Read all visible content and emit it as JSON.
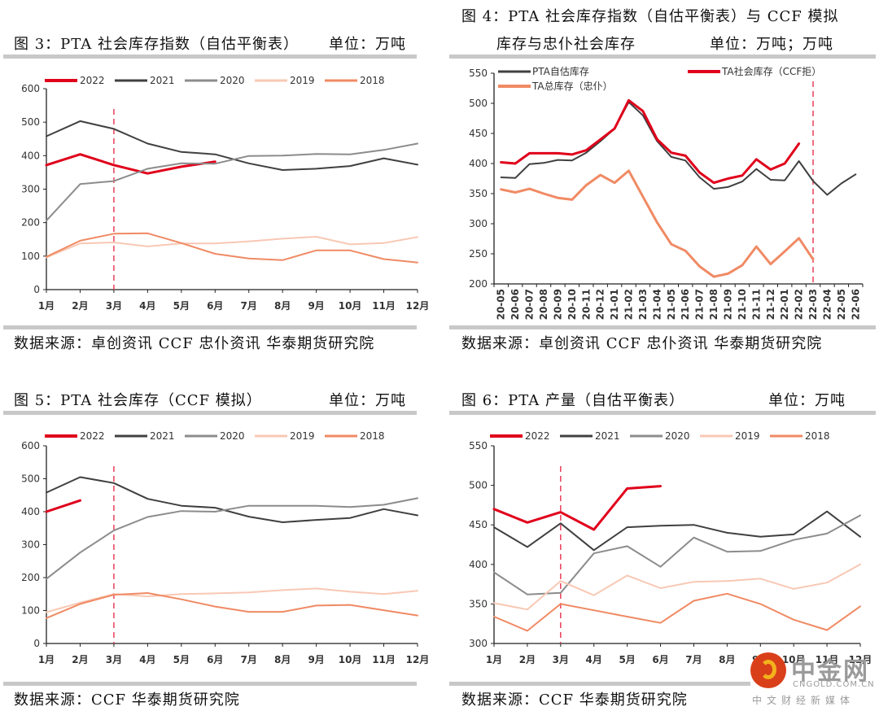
{
  "colors": {
    "y2022": "#e0001b",
    "y2021": "#404040",
    "y2020": "#8c8c8c",
    "y2019": "#f8c8b4",
    "y2018": "#f08a64",
    "marker": "#e8405a"
  },
  "figures": {
    "fig3": {
      "title": "图 3：PTA 社会库存指数（自估平衡表）",
      "unit": "单位：万吨",
      "source": "数据来源：卓创资讯 CCF 忠仆资讯 华泰期货研究院"
    },
    "fig4": {
      "title_line1": "图 4：PTA 社会库存指数（自估平衡表）与 CCF 模拟",
      "title_line2": "库存与忠仆社会库存",
      "unit": "单位：万吨；万吨",
      "source": "数据来源：卓创资讯 CCF 忠仆资讯 华泰期货研究院"
    },
    "fig5": {
      "title": "图 5：PTA 社会库存（CCF 模拟）",
      "unit": "单位：万吨",
      "source": "数据来源：CCF 华泰期货研究院"
    },
    "fig6": {
      "title": "图 6：PTA 产量（自估平衡表）",
      "unit": "单位：万吨",
      "source": "数据来源：CCF 华泰期货研究院"
    }
  },
  "watermark": {
    "name": "中金网",
    "domain": "CNGOLD.COM.CN",
    "tagline": "中文财经新媒体"
  },
  "chart_data": [
    {
      "id": "fig3",
      "type": "line",
      "title": "图 3：PTA 社会库存指数（自估平衡表）",
      "xlabel": "",
      "ylabel": "",
      "categories": [
        "1月",
        "2月",
        "3月",
        "4月",
        "5月",
        "6月",
        "7月",
        "8月",
        "9月",
        "10月",
        "11月",
        "12月"
      ],
      "yticks": [
        0,
        100,
        200,
        300,
        400,
        500,
        600
      ],
      "ylim": [
        0,
        600
      ],
      "marker_x": "3月",
      "legend": "top",
      "series": [
        {
          "name": "2022",
          "color_key": "y2022",
          "width": 3,
          "values": [
            372,
            404,
            372,
            347,
            367,
            382,
            null,
            null,
            null,
            null,
            null,
            null
          ]
        },
        {
          "name": "2021",
          "color_key": "y2021",
          "width": 2,
          "values": [
            458,
            503,
            480,
            436,
            411,
            404,
            377,
            357,
            361,
            369,
            392,
            373
          ]
        },
        {
          "name": "2020",
          "color_key": "y2020",
          "width": 2,
          "values": [
            206,
            315,
            324,
            361,
            377,
            376,
            399,
            400,
            405,
            404,
            417,
            436
          ]
        },
        {
          "name": "2019",
          "color_key": "y2019",
          "width": 2,
          "values": [
            96,
            138,
            141,
            129,
            138,
            138,
            144,
            152,
            158,
            135,
            139,
            157
          ]
        },
        {
          "name": "2018",
          "color_key": "y2018",
          "width": 2,
          "values": [
            98,
            146,
            167,
            168,
            139,
            107,
            93,
            88,
            117,
            117,
            91,
            81
          ]
        }
      ]
    },
    {
      "id": "fig4",
      "type": "line",
      "title": "图 4：PTA 社会库存指数（自估平衡表）与 CCF 模拟库存与忠仆社会库存",
      "categories": [
        "20-05",
        "20-06",
        "20-07",
        "20-08",
        "20-09",
        "20-10",
        "20-11",
        "20-12",
        "21-01",
        "21-02",
        "21-03",
        "21-04",
        "21-05",
        "21-06",
        "21-07",
        "21-08",
        "21-09",
        "21-10",
        "21-11",
        "21-12",
        "22-01",
        "22-02",
        "22-03",
        "22-04",
        "22-05",
        "22-06"
      ],
      "yticks": [
        200,
        250,
        300,
        350,
        400,
        450,
        500,
        550
      ],
      "ylim": [
        200,
        550
      ],
      "marker_x": "22-03",
      "series": [
        {
          "name": "PTA自估库存",
          "color_key": "y2021",
          "width": 2,
          "values": [
            377,
            376,
            399,
            401,
            406,
            405,
            418,
            437,
            458,
            502,
            480,
            437,
            411,
            405,
            377,
            358,
            361,
            370,
            391,
            373,
            372,
            404,
            371,
            348,
            367,
            382
          ]
        },
        {
          "name": "TA社会库存（CCF拒）",
          "color_key": "y2022",
          "width": 3,
          "values": [
            402,
            400,
            417,
            417,
            417,
            415,
            422,
            440,
            458,
            505,
            487,
            440,
            418,
            413,
            385,
            368,
            375,
            380,
            407,
            390,
            400,
            433,
            null,
            null,
            null,
            null
          ]
        },
        {
          "name": "TA总库存（忠仆）",
          "color_key": "y2018",
          "width": 3,
          "values": [
            357,
            352,
            358,
            350,
            343,
            340,
            364,
            381,
            368,
            388,
            345,
            302,
            266,
            255,
            229,
            212,
            217,
            231,
            262,
            233,
            254,
            276,
            241,
            null,
            null,
            null
          ]
        }
      ]
    },
    {
      "id": "fig5",
      "type": "line",
      "title": "图 5：PTA 社会库存（CCF 模拟）",
      "categories": [
        "1月",
        "2月",
        "3月",
        "4月",
        "5月",
        "6月",
        "7月",
        "8月",
        "9月",
        "10月",
        "11月",
        "12月"
      ],
      "yticks": [
        0,
        100,
        200,
        300,
        400,
        500,
        600
      ],
      "ylim": [
        0,
        600
      ],
      "marker_x": "3月",
      "legend": "top",
      "series": [
        {
          "name": "2022",
          "color_key": "y2022",
          "width": 3,
          "values": [
            400,
            434,
            null,
            null,
            null,
            null,
            null,
            null,
            null,
            null,
            null,
            null
          ]
        },
        {
          "name": "2021",
          "color_key": "y2021",
          "width": 2,
          "values": [
            458,
            505,
            487,
            439,
            418,
            412,
            385,
            368,
            375,
            381,
            408,
            389
          ]
        },
        {
          "name": "2020",
          "color_key": "y2020",
          "width": 2,
          "values": [
            196,
            276,
            343,
            384,
            402,
            400,
            418,
            418,
            418,
            414,
            421,
            441
          ]
        },
        {
          "name": "2019",
          "color_key": "y2019",
          "width": 2,
          "values": [
            95,
            124,
            150,
            143,
            150,
            152,
            155,
            162,
            167,
            157,
            150,
            160
          ]
        },
        {
          "name": "2018",
          "color_key": "y2018",
          "width": 2,
          "values": [
            77,
            120,
            148,
            153,
            134,
            112,
            96,
            96,
            115,
            117,
            101,
            85
          ]
        }
      ]
    },
    {
      "id": "fig6",
      "type": "line",
      "title": "图 6：PTA 产量（自估平衡表）",
      "categories": [
        "1月",
        "2月",
        "3月",
        "4月",
        "5月",
        "6月",
        "7月",
        "8月",
        "9月",
        "10月",
        "11月",
        "12月"
      ],
      "yticks": [
        300,
        350,
        400,
        450,
        500,
        550
      ],
      "ylim": [
        300,
        550
      ],
      "marker_x": "3月",
      "legend": "top",
      "series": [
        {
          "name": "2022",
          "color_key": "y2022",
          "width": 3,
          "values": [
            470,
            453,
            466,
            444,
            496,
            499,
            null,
            null,
            null,
            null,
            null,
            null
          ]
        },
        {
          "name": "2021",
          "color_key": "y2021",
          "width": 2,
          "values": [
            447,
            422,
            452,
            418,
            447,
            449,
            450,
            440,
            435,
            438,
            467,
            435
          ]
        },
        {
          "name": "2020",
          "color_key": "y2020",
          "width": 2,
          "values": [
            390,
            362,
            364,
            414,
            423,
            397,
            434,
            416,
            417,
            431,
            439,
            462
          ]
        },
        {
          "name": "2019",
          "color_key": "y2019",
          "width": 2,
          "values": [
            351,
            343,
            379,
            361,
            386,
            370,
            378,
            379,
            382,
            369,
            377,
            400
          ]
        },
        {
          "name": "2018",
          "color_key": "y2018",
          "width": 2,
          "values": [
            334,
            316,
            350,
            342,
            334,
            326,
            354,
            363,
            350,
            330,
            317,
            347
          ]
        }
      ]
    }
  ]
}
